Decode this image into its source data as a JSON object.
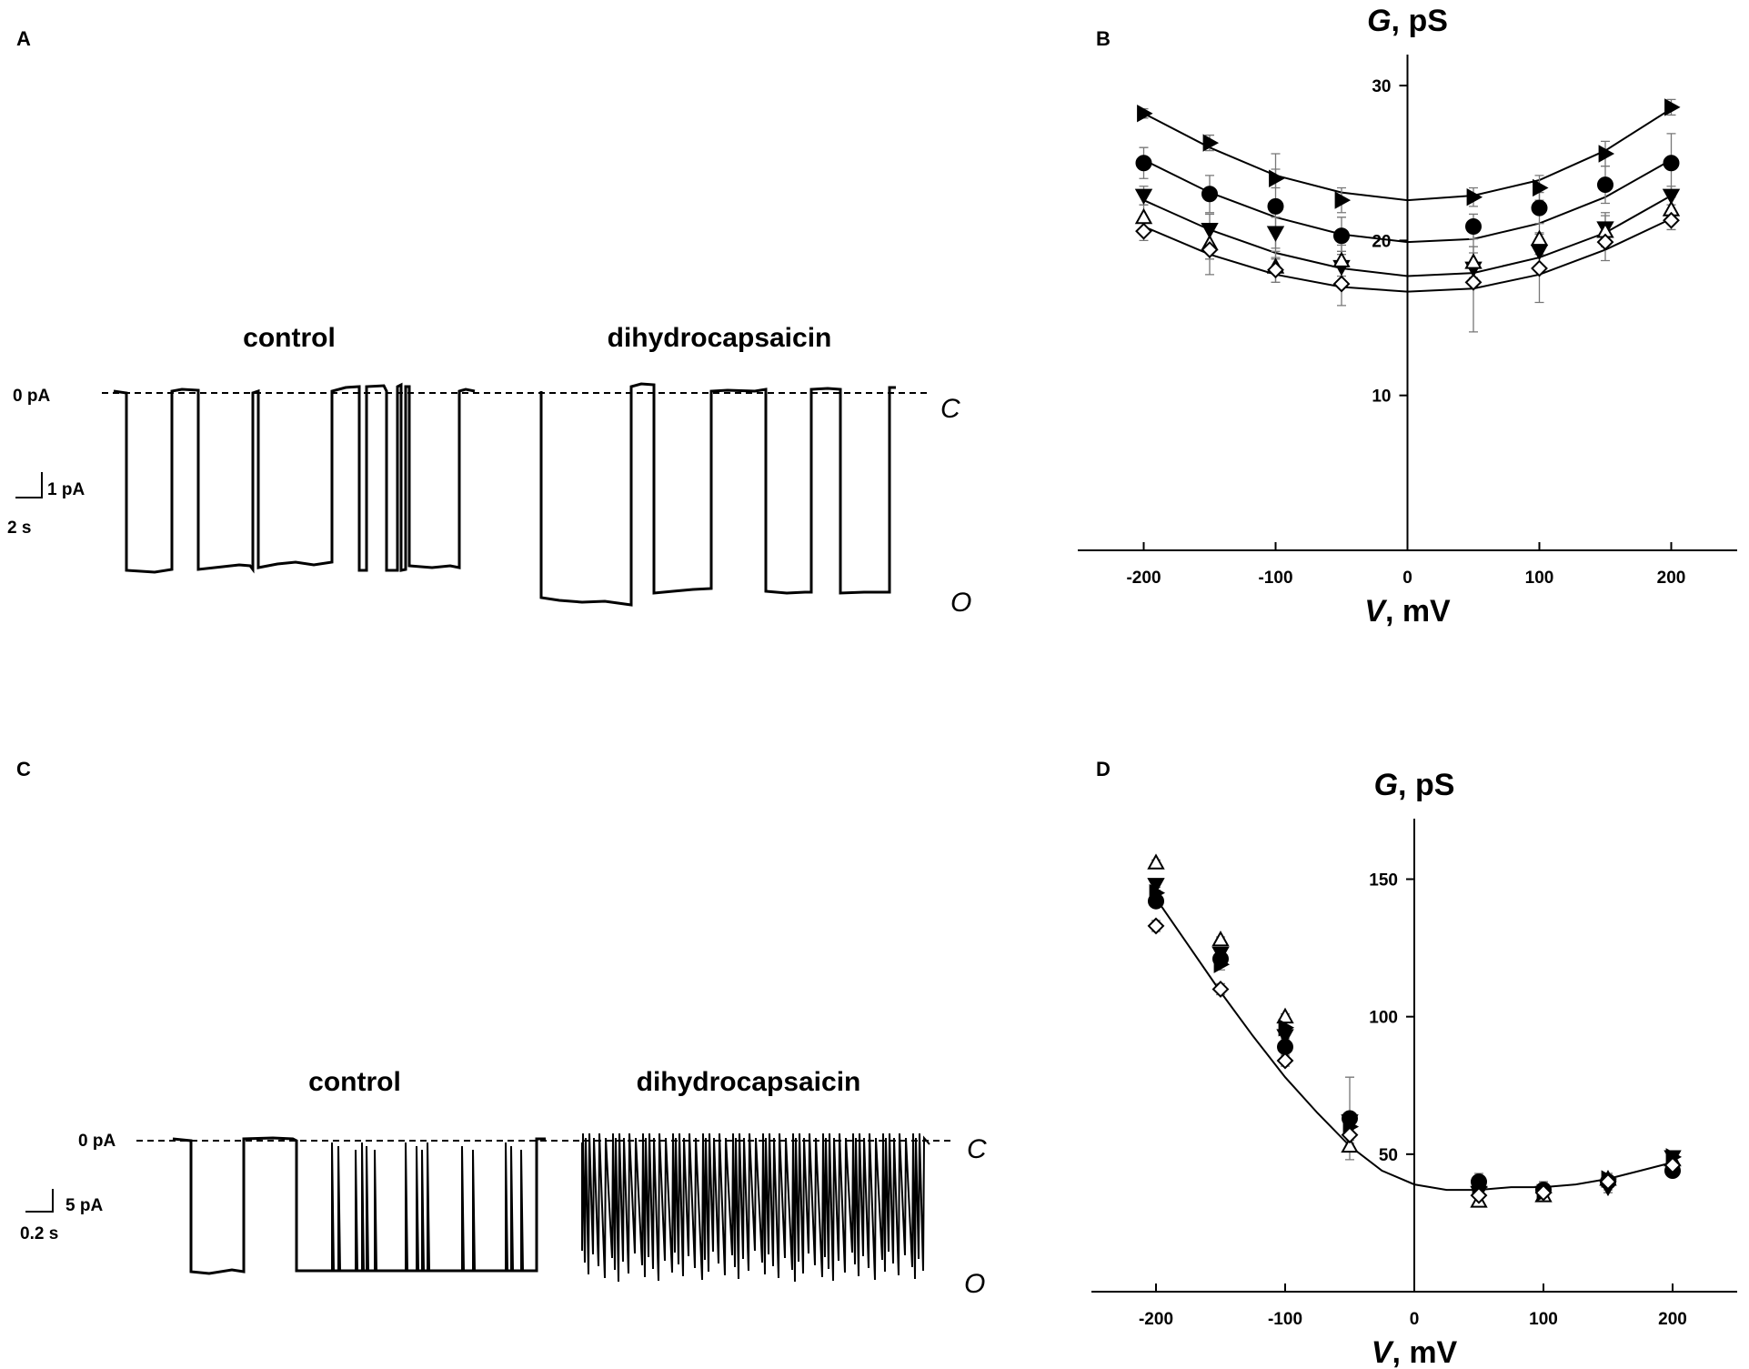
{
  "panels": {
    "A": {
      "label": "A",
      "control_label": "control",
      "drug_label": "dihydrocapsaicin",
      "zero_label": "0 pA",
      "scale_current": "1 pA",
      "scale_time": "2 s",
      "closed_label": "C",
      "open_label": "O"
    },
    "B": {
      "label": "B"
    },
    "C": {
      "label": "C",
      "control_label": "control",
      "drug_label": "dihydrocapsaicin",
      "zero_label": "0 pA",
      "scale_current": "5 pA",
      "scale_time": "0.2 s",
      "closed_label": "C",
      "open_label": "O"
    },
    "D": {
      "label": "D"
    }
  },
  "chart_data": [
    {
      "panel": "B",
      "type": "scatter",
      "ylabel_italic": "G",
      "ylabel_unit": ", pS",
      "xlabel_italic": "V",
      "xlabel_unit": ", mV",
      "xlim": [
        -250,
        250
      ],
      "ylim": [
        0,
        32
      ],
      "xticks": [
        -200,
        -100,
        0,
        100,
        200
      ],
      "yticks": [
        10,
        20,
        30
      ],
      "grid": false,
      "legend": "none",
      "series": [
        {
          "marker": "triangle-right-filled",
          "x": [
            -200,
            -150,
            -100,
            -50,
            50,
            100,
            150,
            200
          ],
          "y": [
            28.2,
            26.3,
            24.0,
            22.6,
            22.8,
            23.4,
            25.6,
            28.6
          ],
          "err": [
            0.3,
            0.5,
            0.6,
            0.8,
            0.6,
            0.8,
            0.8,
            0.5
          ]
        },
        {
          "marker": "circle-filled",
          "x": [
            -200,
            -150,
            -100,
            -50,
            50,
            100,
            150,
            200
          ],
          "y": [
            25.0,
            23.0,
            22.2,
            20.3,
            20.9,
            22.1,
            23.6,
            25.0
          ],
          "err": [
            1.0,
            1.2,
            3.4,
            1.2,
            0.8,
            1.0,
            1.2,
            1.9
          ]
        },
        {
          "marker": "triangle-down-filled",
          "x": [
            -200,
            -150,
            -100,
            -50,
            50,
            100,
            150,
            200
          ],
          "y": [
            22.9,
            20.7,
            20.5,
            18.3,
            18.2,
            19.3,
            20.8,
            22.9
          ],
          "err": [
            0.6,
            1.0,
            1.0,
            1.0,
            1.0,
            1.2,
            1.0,
            0.6
          ]
        },
        {
          "marker": "triangle-up-open",
          "x": [
            -200,
            -150,
            -100,
            -50,
            50,
            100,
            150,
            200
          ],
          "y": [
            21.5,
            19.8,
            18.3,
            18.7,
            18.6,
            20.1,
            20.6,
            22.0
          ],
          "err": [
            0.8,
            1.0,
            1.0,
            1.0,
            1.0,
            1.0,
            1.0,
            0.8
          ]
        },
        {
          "marker": "diamond-open",
          "x": [
            -200,
            -150,
            -100,
            -50,
            50,
            100,
            150,
            200
          ],
          "y": [
            20.6,
            19.4,
            18.1,
            17.2,
            17.3,
            18.2,
            19.9,
            21.3
          ],
          "err": [
            0.6,
            1.6,
            0.8,
            1.4,
            3.2,
            2.2,
            1.2,
            0.6
          ]
        }
      ],
      "fits": [
        {
          "x": [
            -200,
            -150,
            -100,
            -50,
            0,
            50,
            100,
            150,
            200
          ],
          "y": [
            28.2,
            26.0,
            24.2,
            23.1,
            22.6,
            22.9,
            23.9,
            25.8,
            28.5
          ]
        },
        {
          "x": [
            -200,
            -150,
            -100,
            -50,
            0,
            50,
            100,
            150,
            200
          ],
          "y": [
            25.2,
            23.1,
            21.5,
            20.4,
            19.9,
            20.1,
            21.1,
            22.8,
            25.2
          ]
        },
        {
          "x": [
            -200,
            -150,
            -100,
            -50,
            0,
            50,
            100,
            150,
            200
          ],
          "y": [
            22.6,
            20.7,
            19.2,
            18.2,
            17.7,
            17.9,
            18.9,
            20.5,
            22.9
          ]
        },
        {
          "x": [
            -200,
            -150,
            -100,
            -50,
            0,
            50,
            100,
            150,
            200
          ],
          "y": [
            20.9,
            19.1,
            17.8,
            17.0,
            16.7,
            16.9,
            17.8,
            19.4,
            21.4
          ]
        }
      ]
    },
    {
      "panel": "D",
      "type": "scatter",
      "ylabel_italic": "G",
      "ylabel_unit": ", pS",
      "xlabel_italic": "V",
      "xlabel_unit": ", mV",
      "xlim": [
        -250,
        250
      ],
      "ylim": [
        0,
        172
      ],
      "xticks": [
        -200,
        -100,
        0,
        100,
        200
      ],
      "yticks": [
        50,
        100,
        150
      ],
      "grid": false,
      "legend": "none",
      "series": [
        {
          "marker": "triangle-up-open",
          "x": [
            -200,
            -150,
            -100,
            -50,
            50,
            100,
            150,
            200
          ],
          "y": [
            156,
            128,
            100,
            53,
            33,
            35,
            41,
            48
          ],
          "err": [
            1,
            1,
            1,
            1,
            1,
            1,
            1,
            1
          ]
        },
        {
          "marker": "triangle-down-filled",
          "x": [
            -200,
            -150,
            -100,
            -50,
            50,
            100,
            150,
            200
          ],
          "y": [
            148,
            123,
            93,
            62,
            36,
            36,
            38,
            49
          ],
          "err": [
            2,
            2,
            2,
            2,
            2,
            2,
            2,
            2
          ]
        },
        {
          "marker": "circle-filled",
          "x": [
            -200,
            -150,
            -100,
            -50,
            50,
            100,
            150,
            200
          ],
          "y": [
            142,
            121,
            89,
            63,
            40,
            37,
            40,
            44
          ],
          "err": [
            2,
            2,
            3,
            15,
            3,
            3,
            3,
            2
          ]
        },
        {
          "marker": "triangle-right-filled",
          "x": [
            -200,
            -150,
            -100,
            -50,
            50,
            100,
            150,
            200
          ],
          "y": [
            145,
            119,
            96,
            60,
            38,
            36,
            41,
            49
          ],
          "err": [
            2,
            2,
            2,
            2,
            2,
            2,
            2,
            2
          ]
        },
        {
          "marker": "diamond-open",
          "x": [
            -200,
            -150,
            -100,
            -50,
            50,
            100,
            150,
            200
          ],
          "y": [
            133,
            110,
            84,
            57,
            35,
            36,
            40,
            46
          ],
          "err": [
            2,
            2,
            2,
            2,
            2,
            2,
            2,
            2
          ]
        }
      ],
      "fits": [
        {
          "x": [
            -200,
            -175,
            -150,
            -125,
            -100,
            -75,
            -50,
            -25,
            0,
            25,
            50,
            75,
            100,
            125,
            150,
            175,
            200
          ],
          "y": [
            143,
            126,
            109,
            93,
            78,
            65,
            53,
            44,
            39,
            37,
            37,
            38,
            38,
            39,
            41,
            44,
            47
          ]
        }
      ]
    }
  ]
}
